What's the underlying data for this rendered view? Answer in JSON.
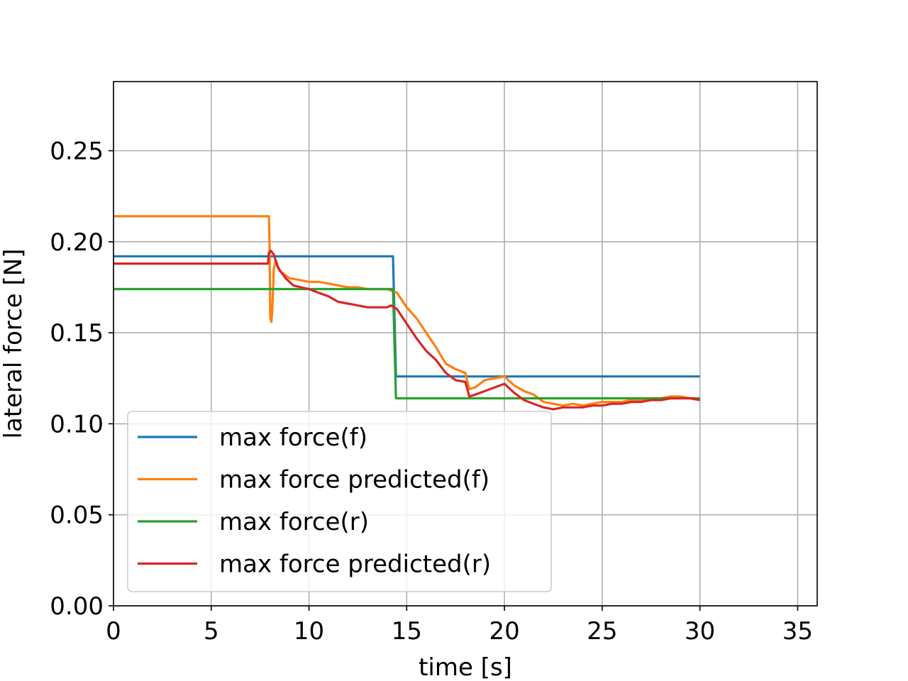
{
  "chart_data": {
    "type": "line",
    "title": "",
    "xlabel": "time [s]",
    "ylabel": "lateral force [N]",
    "xlim": [
      0,
      36
    ],
    "ylim": [
      0,
      0.288
    ],
    "xticks": [
      0,
      5,
      10,
      15,
      20,
      25,
      30,
      35
    ],
    "yticks": [
      0.0,
      0.05,
      0.1,
      0.15,
      0.2,
      0.25
    ],
    "xtick_labels": [
      "0",
      "5",
      "10",
      "15",
      "20",
      "25",
      "30",
      "35"
    ],
    "ytick_labels": [
      "0.00",
      "0.05",
      "0.10",
      "0.15",
      "0.20",
      "0.25"
    ],
    "grid": true,
    "legend_position": "lower-left",
    "series": [
      {
        "name": "max force(f)",
        "color": "#1f77b4",
        "x": [
          0,
          14.3,
          14.45,
          30
        ],
        "y": [
          0.192,
          0.192,
          0.126,
          0.126
        ]
      },
      {
        "name": "max force predicted(f)",
        "color": "#ff7f0e",
        "x": [
          0,
          7.95,
          7.98,
          8.02,
          8.08,
          8.12,
          8.2,
          8.3,
          8.5,
          9,
          9.5,
          10,
          10.5,
          11,
          11.5,
          12,
          12.5,
          13,
          13.5,
          14,
          14.5,
          15,
          15.5,
          16,
          16.5,
          17,
          17.5,
          18,
          18.2,
          18.5,
          19,
          19.5,
          20,
          20.5,
          21,
          21.5,
          22,
          22.5,
          23,
          23.5,
          24,
          24.5,
          25,
          25.5,
          26,
          26.5,
          27,
          27.5,
          28,
          28.5,
          29,
          29.5,
          30
        ],
        "y": [
          0.214,
          0.214,
          0.2,
          0.158,
          0.156,
          0.162,
          0.185,
          0.19,
          0.184,
          0.18,
          0.179,
          0.178,
          0.178,
          0.177,
          0.176,
          0.175,
          0.175,
          0.174,
          0.174,
          0.174,
          0.172,
          0.164,
          0.158,
          0.15,
          0.142,
          0.133,
          0.13,
          0.128,
          0.119,
          0.12,
          0.124,
          0.125,
          0.126,
          0.121,
          0.118,
          0.116,
          0.112,
          0.111,
          0.11,
          0.111,
          0.11,
          0.111,
          0.112,
          0.112,
          0.112,
          0.113,
          0.113,
          0.114,
          0.114,
          0.115,
          0.115,
          0.114,
          0.114
        ]
      },
      {
        "name": "max force(r)",
        "color": "#2ca02c",
        "x": [
          0,
          14.3,
          14.45,
          30
        ],
        "y": [
          0.174,
          0.174,
          0.114,
          0.114
        ]
      },
      {
        "name": "max force predicted(r)",
        "color": "#d62728",
        "x": [
          0,
          7.9,
          7.95,
          8.05,
          8.2,
          8.4,
          8.8,
          9.2,
          9.6,
          10,
          10.5,
          11,
          11.5,
          12,
          12.5,
          13,
          13.5,
          14,
          14.2,
          14.5,
          15,
          15.5,
          16,
          16.5,
          17,
          17.5,
          18,
          18.2,
          18.5,
          19,
          19.5,
          20,
          20.5,
          21,
          21.5,
          22,
          22.5,
          23,
          23.5,
          24,
          24.5,
          25,
          25.5,
          26,
          26.5,
          27,
          27.5,
          28,
          28.5,
          29,
          29.5,
          30
        ],
        "y": [
          0.188,
          0.188,
          0.194,
          0.195,
          0.193,
          0.186,
          0.18,
          0.176,
          0.175,
          0.174,
          0.172,
          0.17,
          0.167,
          0.166,
          0.165,
          0.164,
          0.164,
          0.164,
          0.165,
          0.163,
          0.155,
          0.147,
          0.14,
          0.135,
          0.128,
          0.124,
          0.123,
          0.115,
          0.116,
          0.118,
          0.12,
          0.122,
          0.117,
          0.113,
          0.111,
          0.109,
          0.108,
          0.109,
          0.109,
          0.109,
          0.11,
          0.11,
          0.111,
          0.111,
          0.112,
          0.112,
          0.113,
          0.113,
          0.114,
          0.114,
          0.114,
          0.113
        ]
      }
    ]
  }
}
